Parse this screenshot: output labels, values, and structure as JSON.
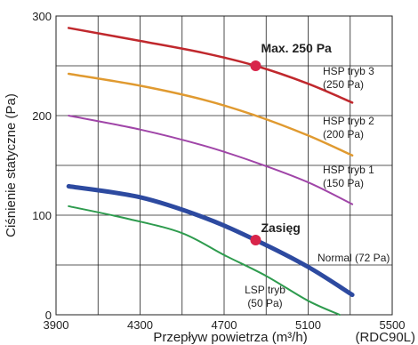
{
  "chart_data": {
    "type": "line",
    "xlabel": "Przepływ powietrza (m³/h)",
    "ylabel": "Ciśnienie statyczne (Pa)",
    "model_label": "(RDC90L)",
    "xlim": [
      3900,
      5500
    ],
    "ylim": [
      0,
      300
    ],
    "xticks": [
      3900,
      4300,
      4700,
      5100,
      5500
    ],
    "yticks": [
      0,
      100,
      200,
      300
    ],
    "grid": true,
    "series": [
      {
        "name": "HSP tryb 3 (250 Pa)",
        "label_lines": [
          "HSP tryb 3",
          "(250 Pa)"
        ],
        "color": "#c0282d",
        "width": 2.5,
        "x": [
          3960,
          4300,
          4600,
          4850,
          5100,
          5310
        ],
        "y": [
          288,
          275,
          263,
          250,
          232,
          213
        ]
      },
      {
        "name": "HSP tryb 2 (200 Pa)",
        "label_lines": [
          "HSP tryb 2",
          "(200 Pa)"
        ],
        "color": "#e09a30",
        "width": 2.5,
        "x": [
          3960,
          4300,
          4600,
          4850,
          5100,
          5310
        ],
        "y": [
          242,
          230,
          216,
          200,
          180,
          160
        ]
      },
      {
        "name": "HSP tryb 1 (150 Pa)",
        "label_lines": [
          "HSP tryb 1",
          "(150 Pa)"
        ],
        "color": "#a045a8",
        "width": 2,
        "x": [
          3960,
          4300,
          4600,
          4850,
          5100,
          5310
        ],
        "y": [
          200,
          186,
          170,
          153,
          133,
          111
        ]
      },
      {
        "name": "Normal (72 Pa)",
        "label_lines": [
          "Normal (72 Pa)"
        ],
        "color": "#2d4aa0",
        "width": 5,
        "x": [
          3960,
          4300,
          4600,
          4850,
          5100,
          5310
        ],
        "y": [
          129,
          118,
          98,
          75,
          48,
          20
        ]
      },
      {
        "name": "LSP tryb (50 Pa)",
        "label_lines": [
          "LSP tryb",
          "(50 Pa)"
        ],
        "color": "#2e9b4e",
        "width": 2,
        "x": [
          3960,
          4250,
          4500,
          4700,
          4900,
          5100,
          5250
        ],
        "y": [
          109,
          96,
          82,
          60,
          39,
          14,
          0
        ]
      }
    ],
    "annotations": [
      {
        "text": "Max. 250 Pa",
        "x": 4850,
        "y": 250,
        "color": "#d8254a"
      },
      {
        "text": "Zasięg",
        "x": 4850,
        "y": 75,
        "color": "#d8254a"
      }
    ]
  }
}
